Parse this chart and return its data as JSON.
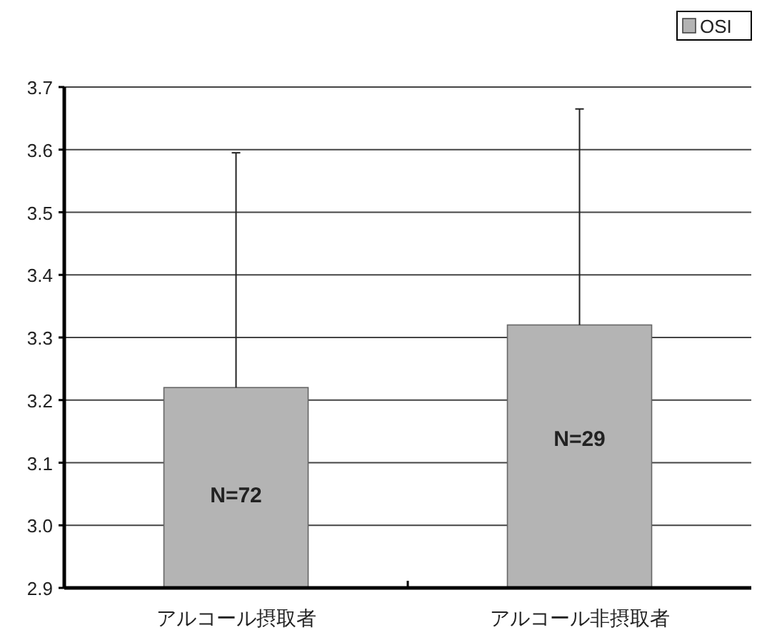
{
  "chart_data": {
    "type": "bar",
    "categories": [
      "アルコール摂取者",
      "アルコール非摂取者"
    ],
    "series": [
      {
        "name": "OSI",
        "color": "#b4b4b4",
        "values": [
          3.22,
          3.32
        ],
        "errors": [
          [
            3.22,
            3.595
          ],
          [
            3.32,
            3.665
          ]
        ]
      }
    ],
    "ylim": [
      2.9,
      3.7
    ],
    "yticks": [
      2.9,
      {
        "value": 3,
        "label": "3.0"
      },
      3.1,
      3.2,
      3.3,
      3.4,
      3.5,
      3.6,
      3.7
    ],
    "grid": "y",
    "legend": "top right",
    "annotations": [
      "N=72",
      "N=29"
    ]
  }
}
